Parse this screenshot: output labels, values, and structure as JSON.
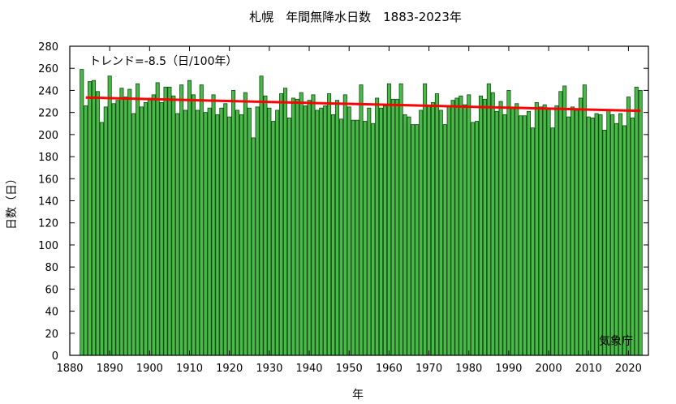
{
  "chart_data": {
    "type": "bar",
    "title": "札幌　年間無降水日数　1883-2023年",
    "xlabel": "年",
    "ylabel": "日数（日）",
    "xlim": [
      1880,
      2025
    ],
    "ylim": [
      0,
      280
    ],
    "x_ticks": [
      1880,
      1890,
      1900,
      1910,
      1920,
      1930,
      1940,
      1950,
      1960,
      1970,
      1980,
      1990,
      2000,
      2010,
      2020
    ],
    "y_ticks": [
      0,
      20,
      40,
      60,
      80,
      100,
      120,
      140,
      160,
      180,
      200,
      220,
      240,
      260,
      280
    ],
    "grid": false,
    "trend_label": "トレンド=-8.5（日/100年）",
    "source": "気象庁",
    "trend": {
      "x": [
        1884,
        2023
      ],
      "y": [
        233.5,
        221.5
      ]
    },
    "colors": {
      "bar_fill": "#4cb84c",
      "bar_edge": "#0a4a0a",
      "trend": "#ff0000"
    },
    "series": [
      {
        "x_start": 1883,
        "values": [
          259,
          226,
          248,
          249,
          239,
          211,
          225,
          253,
          228,
          231,
          242,
          234,
          241,
          219,
          246,
          225,
          229,
          233,
          236,
          247,
          229,
          243,
          243,
          235,
          219,
          245,
          222,
          249,
          236,
          222,
          245,
          220,
          224,
          236,
          218,
          224,
          228,
          216,
          240,
          222,
          218,
          238,
          224,
          197,
          225,
          253,
          235,
          224,
          212,
          222,
          237,
          242,
          215,
          233,
          232,
          238,
          226,
          231,
          236,
          222,
          224,
          226,
          237,
          218,
          231,
          214,
          236,
          225,
          213,
          213,
          245,
          212,
          224,
          210,
          233,
          224,
          226,
          246,
          232,
          232,
          246,
          218,
          216,
          209,
          209,
          222,
          246,
          226,
          229,
          237,
          222,
          209,
          226,
          231,
          233,
          235,
          227,
          236,
          211,
          212,
          235,
          232,
          246,
          238,
          221,
          230,
          218,
          240,
          225,
          228,
          217,
          217,
          221,
          206,
          229,
          225,
          227,
          224,
          206,
          226,
          239,
          244,
          216,
          225,
          222,
          233,
          245,
          216,
          215,
          219,
          218,
          204,
          222,
          218,
          210,
          219,
          208,
          234,
          215,
          243,
          240
        ]
      }
    ]
  }
}
